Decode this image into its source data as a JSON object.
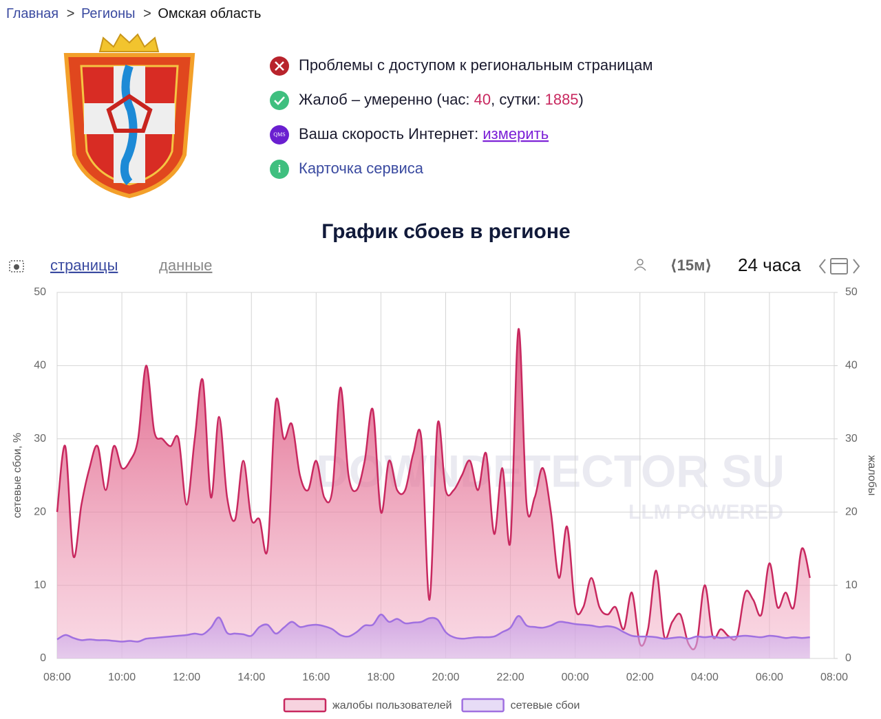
{
  "breadcrumbs": {
    "home": "Главная",
    "regions": "Регионы",
    "current": "Омская область"
  },
  "status": {
    "access": "Проблемы с доступом к региональным страницам",
    "complaints": {
      "prefix": "Жалоб – умеренно (час: ",
      "hour": "40",
      "middle": ", сутки: ",
      "day": "1885",
      "suffix": ")"
    },
    "speed": {
      "text": "Ваша скорость Интернет: ",
      "link": "измерить",
      "icon": "QMS"
    },
    "card": "Карточка сервиса"
  },
  "toolbar": {
    "pages": "страницы",
    "data": "данные",
    "interval": "15м",
    "period": "24 часа"
  },
  "watermark": {
    "main": "DOWNDETECTOR SU",
    "sub": "LLM POWERED"
  },
  "chart_data": {
    "type": "area",
    "title": "График сбоев в регионе",
    "y_label": "сетевые сбои, %",
    "y2_label": "жалобы",
    "xlim": [
      0,
      24
    ],
    "xticks": [
      {
        "value": 0,
        "label": "08:00"
      },
      {
        "value": 2,
        "label": "10:00"
      },
      {
        "value": 4,
        "label": "12:00"
      },
      {
        "value": 6,
        "label": "14:00"
      },
      {
        "value": 8,
        "label": "16:00"
      },
      {
        "value": 10,
        "label": "18:00"
      },
      {
        "value": 12,
        "label": "20:00"
      },
      {
        "value": 14,
        "label": "22:00"
      },
      {
        "value": 16,
        "label": "00:00"
      },
      {
        "value": 18,
        "label": "02:00"
      },
      {
        "value": 20,
        "label": "04:00"
      },
      {
        "value": 22,
        "label": "06:00"
      },
      {
        "value": 24,
        "label": "08:00"
      }
    ],
    "ylim": [
      0,
      50
    ],
    "yticks": [
      0,
      10,
      20,
      30,
      40,
      50
    ],
    "y2lim": [
      0,
      50
    ],
    "y2ticks": [
      0,
      10,
      20,
      30,
      40,
      50
    ],
    "grid": true,
    "legend": "bottom",
    "x": [
      0,
      0.25,
      0.5,
      0.75,
      1,
      1.25,
      1.5,
      1.75,
      2,
      2.25,
      2.5,
      2.75,
      3,
      3.25,
      3.5,
      3.75,
      4,
      4.25,
      4.5,
      4.75,
      5,
      5.25,
      5.5,
      5.75,
      6,
      6.25,
      6.5,
      6.75,
      7,
      7.25,
      7.5,
      7.75,
      8,
      8.25,
      8.5,
      8.75,
      9,
      9.25,
      9.5,
      9.75,
      10,
      10.25,
      10.5,
      10.75,
      11,
      11.25,
      11.5,
      11.75,
      12,
      12.25,
      12.5,
      12.75,
      13,
      13.25,
      13.5,
      13.75,
      14,
      14.25,
      14.5,
      14.75,
      15,
      15.25,
      15.5,
      15.75,
      16,
      16.25,
      16.5,
      16.75,
      17,
      17.25,
      17.5,
      17.75,
      18,
      18.25,
      18.5,
      18.75,
      19,
      19.25,
      19.5,
      19.75,
      20,
      20.25,
      20.5,
      20.75,
      21,
      21.25,
      21.5,
      21.75,
      22,
      22.25,
      22.5,
      22.75,
      23,
      23.25
    ],
    "series": [
      {
        "name": "жалобы пользователей",
        "color": "#c8285f",
        "axis": "y2",
        "values": [
          20,
          29,
          14,
          21,
          26,
          29,
          23,
          29,
          26,
          27,
          30,
          40,
          31,
          30,
          29,
          30,
          21,
          30,
          38,
          22,
          33,
          22,
          19,
          27,
          19,
          19,
          15,
          35,
          30,
          32,
          25,
          23,
          27,
          22,
          23,
          37,
          25,
          23,
          27,
          34,
          20,
          27,
          23,
          23,
          28,
          30,
          8,
          32,
          23,
          23,
          25,
          27,
          23,
          28,
          17,
          26,
          16,
          45,
          21,
          22,
          26,
          20,
          11,
          18,
          7,
          7,
          11,
          7,
          6,
          7,
          4,
          9,
          2,
          4,
          12,
          3,
          5,
          6,
          2,
          2,
          10,
          3,
          4,
          3,
          3,
          9,
          8,
          6,
          13,
          7,
          9,
          7,
          15,
          11
        ]
      },
      {
        "name": "сетевые сбои",
        "color": "#a070e0",
        "values": [
          2.6,
          3.2,
          2.8,
          2.5,
          2.6,
          2.5,
          2.5,
          2.4,
          2.3,
          2.4,
          2.3,
          2.7,
          2.8,
          2.9,
          3.0,
          3.1,
          3.2,
          3.4,
          3.3,
          4.2,
          5.6,
          3.5,
          3.4,
          3.3,
          3.1,
          4.3,
          4.6,
          3.4,
          4.2,
          5.0,
          4.3,
          4.5,
          4.6,
          4.4,
          4.0,
          3.2,
          3.0,
          3.6,
          4.5,
          4.6,
          6.0,
          5.0,
          5.4,
          4.8,
          4.9,
          5.0,
          5.5,
          5.3,
          3.6,
          2.9,
          2.7,
          2.8,
          2.9,
          2.9,
          3.0,
          3.6,
          4.2,
          5.8,
          4.5,
          4.3,
          4.2,
          4.5,
          5.0,
          4.9,
          4.7,
          4.6,
          4.5,
          4.3,
          4.4,
          4.2,
          3.6,
          3.1,
          3.0,
          3.0,
          2.9,
          2.7,
          2.8,
          2.9,
          2.7,
          3.0,
          2.9,
          3.0,
          2.8,
          2.9,
          3.0,
          3.1,
          3.0,
          2.9,
          3.1,
          3.0,
          2.8,
          2.9,
          2.8,
          2.9
        ]
      }
    ]
  }
}
